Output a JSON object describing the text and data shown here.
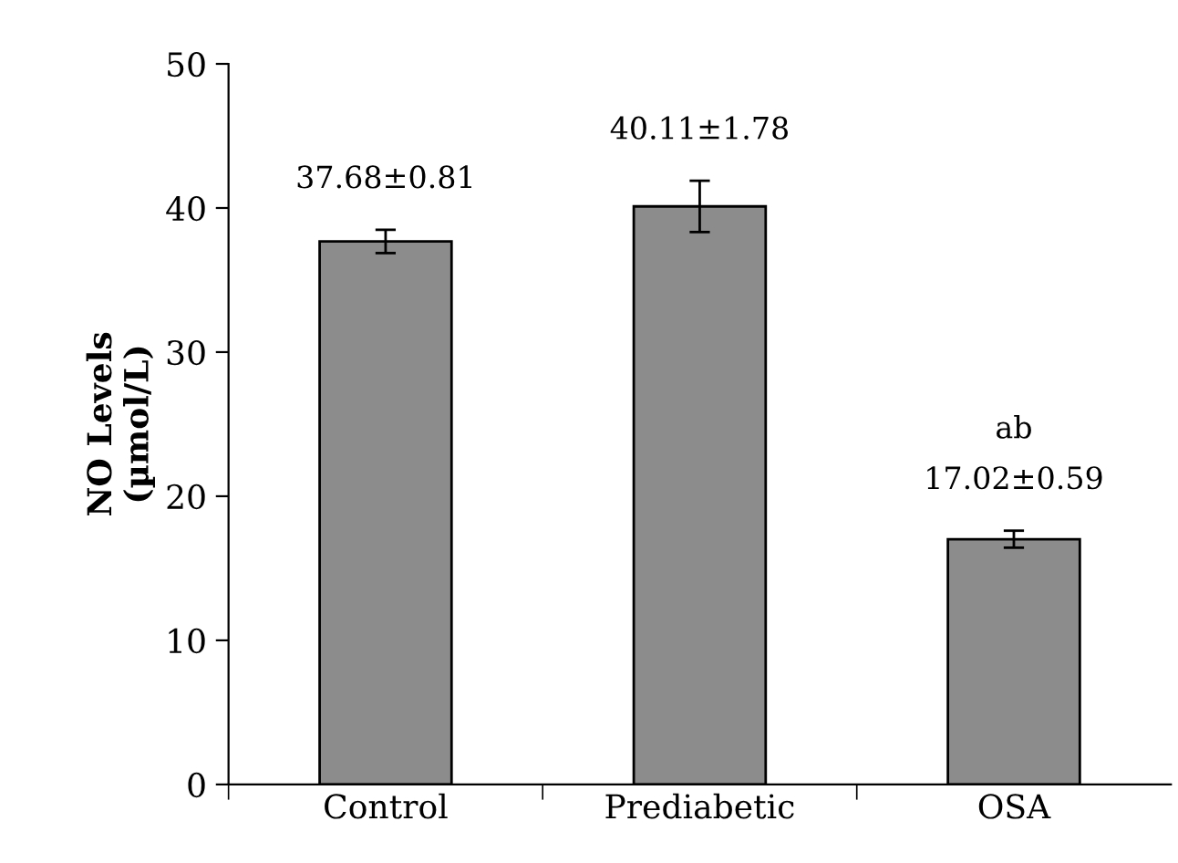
{
  "chart_data": {
    "type": "bar",
    "ylabel": "NO Levels\n(µmol/L)",
    "categories": [
      "Control",
      "Prediabetic",
      "OSA"
    ],
    "values": [
      37.68,
      40.11,
      17.02
    ],
    "errors": [
      0.81,
      1.78,
      0.59
    ],
    "value_labels": [
      "37.68±0.81",
      "40.11±1.78",
      "17.02±0.59"
    ],
    "color": "#8c8c8c",
    "annotations": [
      "ab"
    ],
    "ylim": [
      0,
      50
    ],
    "yticks": [
      0,
      10,
      20,
      30,
      40,
      50
    ],
    "grid": false,
    "legend": false
  }
}
